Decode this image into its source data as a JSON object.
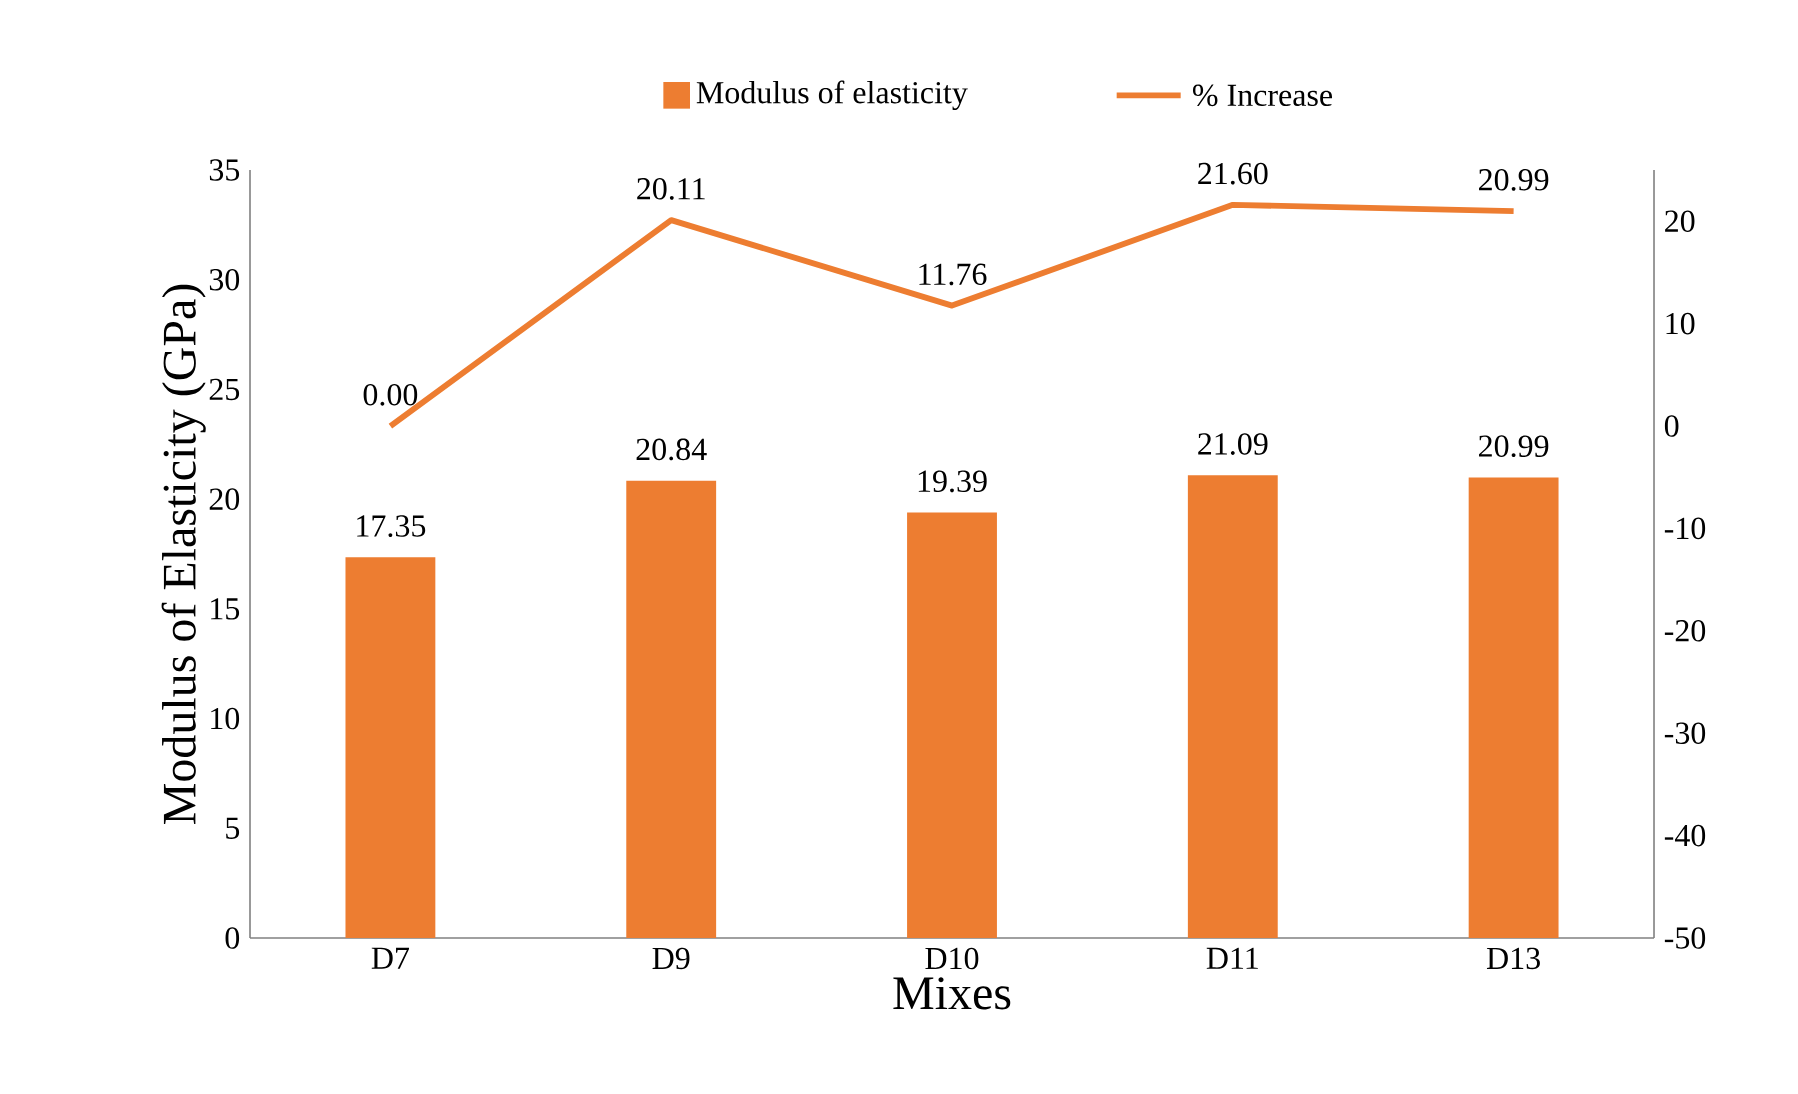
{
  "chart_data": {
    "type": "bar",
    "xlabel": "Mixes",
    "ylabel": "Modulus of Elasticity (GPa)",
    "categories": [
      "D7",
      "D9",
      "D10",
      "D11",
      "D13"
    ],
    "series": [
      {
        "name": "Modulus of elasticity",
        "color": "#ed7d31",
        "values": [
          17.35,
          20.84,
          19.39,
          21.09,
          20.99
        ],
        "value_labels": [
          "17.35",
          "20.84",
          "19.39",
          "21.09",
          "20.99"
        ]
      },
      {
        "name": "% Increase",
        "type": "line",
        "axis": "y2",
        "color": "#ed7d31",
        "values": [
          0.0,
          20.11,
          11.76,
          21.6,
          20.99
        ],
        "value_labels": [
          "0.00",
          "20.11",
          "11.76",
          "21.60",
          "20.99"
        ]
      }
    ],
    "ylim": [
      0,
      35
    ],
    "yticks": [
      0,
      5,
      10,
      15,
      20,
      25,
      30,
      35
    ],
    "y2lim": [
      -50,
      25
    ],
    "y2ticks": [
      -50,
      -40,
      -30,
      -20,
      -10,
      0,
      10,
      20
    ],
    "legend": "top",
    "grid": false
  }
}
